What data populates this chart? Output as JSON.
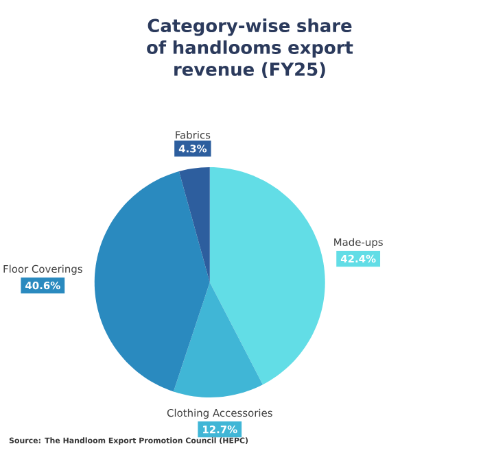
{
  "chart_data": {
    "type": "pie",
    "title": "Category-wise share of handlooms export revenue (FY25)",
    "categories": [
      "Made-ups",
      "Clothing Accessories",
      "Floor Coverings",
      "Fabrics"
    ],
    "values": [
      42.4,
      12.7,
      40.6,
      4.3
    ],
    "value_labels": [
      "42.4%",
      "12.7%",
      "40.6%",
      "4.3%"
    ],
    "colors": [
      "#62dde6",
      "#40b6d6",
      "#2a8abf",
      "#2d5e9e"
    ],
    "annotations": [
      "Source: The Handloom Export Promotion Council (HEPC)"
    ]
  }
}
